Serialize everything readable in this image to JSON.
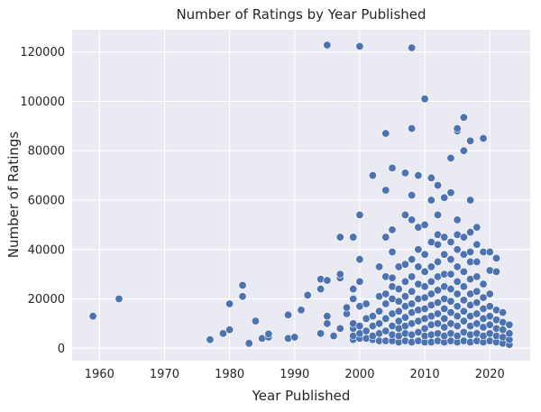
{
  "chart_data": {
    "type": "scatter",
    "title": "Number of Ratings by Year Published",
    "xlabel": "Year Published",
    "ylabel": "Number of Ratings",
    "xlim": [
      1955.8,
      2026.2
    ],
    "ylim": [
      -5000,
      129000
    ],
    "xticks": [
      1960,
      1970,
      1980,
      1990,
      2000,
      2010,
      2020
    ],
    "yticks": [
      0,
      20000,
      40000,
      60000,
      80000,
      100000,
      120000
    ],
    "grid": true,
    "color": "#4c72b0",
    "background": "#eaeaf2",
    "points": [
      [
        1959,
        13000
      ],
      [
        1963,
        20000
      ],
      [
        1977,
        3500
      ],
      [
        1979,
        6000
      ],
      [
        1980,
        7500
      ],
      [
        1980,
        18000
      ],
      [
        1982,
        21000
      ],
      [
        1982,
        25500
      ],
      [
        1983,
        2000
      ],
      [
        1984,
        11000
      ],
      [
        1985,
        4000
      ],
      [
        1986,
        4500
      ],
      [
        1986,
        5800
      ],
      [
        1989,
        4000
      ],
      [
        1989,
        13500
      ],
      [
        1990,
        4500
      ],
      [
        1991,
        15500
      ],
      [
        1992,
        21500
      ],
      [
        1994,
        6000
      ],
      [
        1994,
        24000
      ],
      [
        1994,
        28000
      ],
      [
        1995,
        10000
      ],
      [
        1995,
        13000
      ],
      [
        1995,
        27500
      ],
      [
        1995,
        122800
      ],
      [
        1996,
        5000
      ],
      [
        1997,
        8000
      ],
      [
        1997,
        28500
      ],
      [
        1997,
        30000
      ],
      [
        1997,
        45000
      ],
      [
        1998,
        14000
      ],
      [
        1998,
        16500
      ],
      [
        1999,
        3500
      ],
      [
        1999,
        5000
      ],
      [
        1999,
        8000
      ],
      [
        1999,
        10000
      ],
      [
        1999,
        20000
      ],
      [
        1999,
        24000
      ],
      [
        1999,
        45000
      ],
      [
        2000,
        4000
      ],
      [
        2000,
        6000
      ],
      [
        2000,
        9000
      ],
      [
        2000,
        17000
      ],
      [
        2000,
        27000
      ],
      [
        2000,
        36000
      ],
      [
        2000,
        54000
      ],
      [
        2000,
        122300
      ],
      [
        2001,
        4000
      ],
      [
        2001,
        7000
      ],
      [
        2001,
        12000
      ],
      [
        2001,
        18000
      ],
      [
        2002,
        3500
      ],
      [
        2002,
        5000
      ],
      [
        2002,
        9000
      ],
      [
        2002,
        13000
      ],
      [
        2002,
        70000
      ],
      [
        2003,
        3000
      ],
      [
        2003,
        6000
      ],
      [
        2003,
        10000
      ],
      [
        2003,
        15000
      ],
      [
        2003,
        21000
      ],
      [
        2003,
        33000
      ],
      [
        2004,
        3000
      ],
      [
        2004,
        7000
      ],
      [
        2004,
        12000
      ],
      [
        2004,
        18000
      ],
      [
        2004,
        22000
      ],
      [
        2004,
        29000
      ],
      [
        2004,
        45000
      ],
      [
        2004,
        64000
      ],
      [
        2004,
        87000
      ],
      [
        2005,
        3000
      ],
      [
        2005,
        5500
      ],
      [
        2005,
        9000
      ],
      [
        2005,
        14000
      ],
      [
        2005,
        20000
      ],
      [
        2005,
        25000
      ],
      [
        2005,
        28500
      ],
      [
        2005,
        39000
      ],
      [
        2005,
        48000
      ],
      [
        2005,
        73000
      ],
      [
        2006,
        2500
      ],
      [
        2006,
        5000
      ],
      [
        2006,
        8000
      ],
      [
        2006,
        11000
      ],
      [
        2006,
        15000
      ],
      [
        2006,
        19000
      ],
      [
        2006,
        24000
      ],
      [
        2006,
        33000
      ],
      [
        2007,
        3000
      ],
      [
        2007,
        6000
      ],
      [
        2007,
        9000
      ],
      [
        2007,
        12500
      ],
      [
        2007,
        17000
      ],
      [
        2007,
        21000
      ],
      [
        2007,
        27000
      ],
      [
        2007,
        34000
      ],
      [
        2007,
        54000
      ],
      [
        2007,
        71000
      ],
      [
        2008,
        2500
      ],
      [
        2008,
        5500
      ],
      [
        2008,
        10000
      ],
      [
        2008,
        14500
      ],
      [
        2008,
        18000
      ],
      [
        2008,
        23000
      ],
      [
        2008,
        29000
      ],
      [
        2008,
        36000
      ],
      [
        2008,
        52000
      ],
      [
        2008,
        62000
      ],
      [
        2008,
        89000
      ],
      [
        2008,
        121700
      ],
      [
        2009,
        3000
      ],
      [
        2009,
        6500
      ],
      [
        2009,
        11000
      ],
      [
        2009,
        15500
      ],
      [
        2009,
        20000
      ],
      [
        2009,
        26000
      ],
      [
        2009,
        33000
      ],
      [
        2009,
        40000
      ],
      [
        2009,
        49000
      ],
      [
        2009,
        70000
      ],
      [
        2010,
        2500
      ],
      [
        2010,
        5000
      ],
      [
        2010,
        8000
      ],
      [
        2010,
        12000
      ],
      [
        2010,
        16000
      ],
      [
        2010,
        20500
      ],
      [
        2010,
        25000
      ],
      [
        2010,
        31000
      ],
      [
        2010,
        38000
      ],
      [
        2010,
        50000
      ],
      [
        2010,
        101000
      ],
      [
        2011,
        2500
      ],
      [
        2011,
        5500
      ],
      [
        2011,
        9500
      ],
      [
        2011,
        13000
      ],
      [
        2011,
        17500
      ],
      [
        2011,
        22000
      ],
      [
        2011,
        27000
      ],
      [
        2011,
        33000
      ],
      [
        2011,
        43000
      ],
      [
        2011,
        60000
      ],
      [
        2011,
        69000
      ],
      [
        2012,
        3000
      ],
      [
        2012,
        6000
      ],
      [
        2012,
        10000
      ],
      [
        2012,
        14000
      ],
      [
        2012,
        18500
      ],
      [
        2012,
        23500
      ],
      [
        2012,
        29000
      ],
      [
        2012,
        35000
      ],
      [
        2012,
        42000
      ],
      [
        2012,
        46000
      ],
      [
        2012,
        54000
      ],
      [
        2012,
        66000
      ],
      [
        2013,
        2500
      ],
      [
        2013,
        5000
      ],
      [
        2013,
        8500
      ],
      [
        2013,
        12000
      ],
      [
        2013,
        16000
      ],
      [
        2013,
        20000
      ],
      [
        2013,
        25000
      ],
      [
        2013,
        30000
      ],
      [
        2013,
        38000
      ],
      [
        2013,
        45000
      ],
      [
        2013,
        61000
      ],
      [
        2014,
        3000
      ],
      [
        2014,
        6000
      ],
      [
        2014,
        10000
      ],
      [
        2014,
        14500
      ],
      [
        2014,
        19000
      ],
      [
        2014,
        24000
      ],
      [
        2014,
        30000
      ],
      [
        2014,
        36000
      ],
      [
        2014,
        43000
      ],
      [
        2014,
        63000
      ],
      [
        2014,
        77000
      ],
      [
        2015,
        2500
      ],
      [
        2015,
        5000
      ],
      [
        2015,
        9000
      ],
      [
        2015,
        13000
      ],
      [
        2015,
        17000
      ],
      [
        2015,
        22000
      ],
      [
        2015,
        27000
      ],
      [
        2015,
        33000
      ],
      [
        2015,
        40000
      ],
      [
        2015,
        46000
      ],
      [
        2015,
        52000
      ],
      [
        2015,
        88000
      ],
      [
        2015,
        89000
      ],
      [
        2016,
        3000
      ],
      [
        2016,
        6500
      ],
      [
        2016,
        11000
      ],
      [
        2016,
        15000
      ],
      [
        2016,
        19500
      ],
      [
        2016,
        25000
      ],
      [
        2016,
        31000
      ],
      [
        2016,
        38000
      ],
      [
        2016,
        45000
      ],
      [
        2016,
        80000
      ],
      [
        2016,
        93500
      ],
      [
        2017,
        2500
      ],
      [
        2017,
        5500
      ],
      [
        2017,
        9000
      ],
      [
        2017,
        13000
      ],
      [
        2017,
        17500
      ],
      [
        2017,
        22000
      ],
      [
        2017,
        28000
      ],
      [
        2017,
        35000
      ],
      [
        2017,
        39000
      ],
      [
        2017,
        47000
      ],
      [
        2017,
        60000
      ],
      [
        2017,
        84000
      ],
      [
        2018,
        3000
      ],
      [
        2018,
        6000
      ],
      [
        2018,
        10000
      ],
      [
        2018,
        14000
      ],
      [
        2018,
        18500
      ],
      [
        2018,
        23000
      ],
      [
        2018,
        29000
      ],
      [
        2018,
        35000
      ],
      [
        2018,
        42000
      ],
      [
        2018,
        49000
      ],
      [
        2019,
        2500
      ],
      [
        2019,
        5000
      ],
      [
        2019,
        8500
      ],
      [
        2019,
        12000
      ],
      [
        2019,
        16000
      ],
      [
        2019,
        20500
      ],
      [
        2019,
        26000
      ],
      [
        2019,
        39000
      ],
      [
        2019,
        85000
      ],
      [
        2020,
        3000
      ],
      [
        2020,
        6000
      ],
      [
        2020,
        9500
      ],
      [
        2020,
        13000
      ],
      [
        2020,
        17000
      ],
      [
        2020,
        22000
      ],
      [
        2020,
        31500
      ],
      [
        2020,
        39000
      ],
      [
        2021,
        2500
      ],
      [
        2021,
        5000
      ],
      [
        2021,
        8000
      ],
      [
        2021,
        11500
      ],
      [
        2021,
        15500
      ],
      [
        2021,
        31000
      ],
      [
        2021,
        36500
      ],
      [
        2022,
        2000
      ],
      [
        2022,
        4500
      ],
      [
        2022,
        7500
      ],
      [
        2022,
        10500
      ],
      [
        2022,
        14500
      ],
      [
        2023,
        1500
      ],
      [
        2023,
        3500
      ],
      [
        2023,
        6000
      ],
      [
        2023,
        9500
      ]
    ]
  }
}
